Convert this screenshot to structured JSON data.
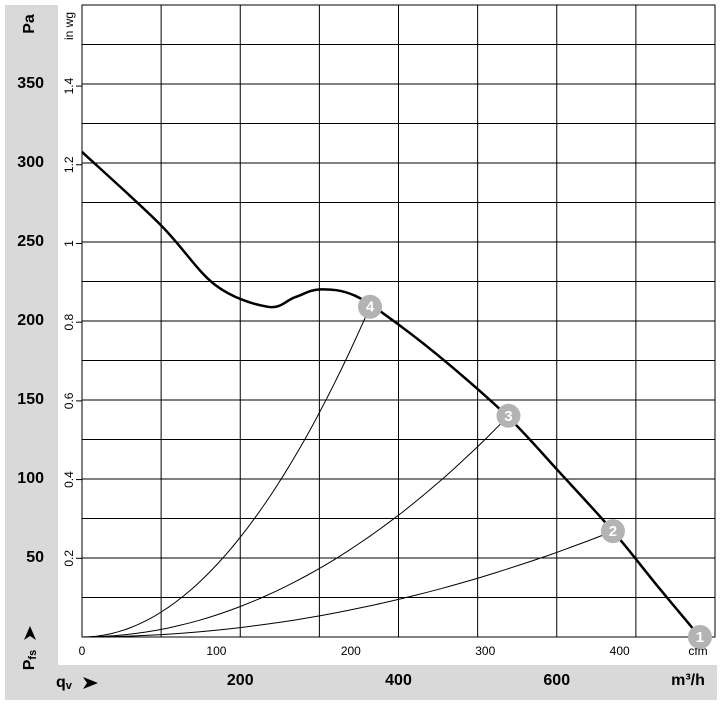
{
  "chart_data": {
    "type": "line",
    "y_label": "Pa",
    "y2_label": "in wg",
    "y_symbol": "P",
    "y_symbol_sub": "fs",
    "x_symbol": "q",
    "x_symbol_sub": "v",
    "x_label": "m³/h",
    "x2_label": "cfm",
    "xlim": [
      0,
      800
    ],
    "xticks": [
      200,
      400,
      600
    ],
    "xgrid": [
      100,
      200,
      300,
      400,
      500,
      600,
      700
    ],
    "x2lim": [
      0,
      470.9
    ],
    "x2ticks": [
      0,
      100,
      200,
      300,
      400
    ],
    "ylim": [
      0,
      400
    ],
    "yticks": [
      50,
      100,
      150,
      200,
      250,
      300,
      350
    ],
    "ygrid": [
      25,
      50,
      75,
      100,
      125,
      150,
      175,
      200,
      225,
      250,
      275,
      300,
      325,
      350,
      375
    ],
    "y2lim": [
      0,
      1.606
    ],
    "y2ticks": [
      0.2,
      0.4,
      0.6,
      0.8,
      1,
      1.2,
      1.4
    ],
    "curve": {
      "color": "#000000",
      "x": [
        0,
        99,
        168,
        235,
        269,
        301,
        345,
        402,
        465,
        539,
        604,
        671,
        731,
        781
      ],
      "values": [
        307,
        261,
        223,
        209,
        215,
        220,
        216,
        197,
        172,
        139,
        104,
        67,
        30,
        0
      ]
    },
    "system_color": "#000000",
    "point_color": "#b3b3b3",
    "operating_points": [
      {
        "label": "1",
        "x": 781,
        "value": 0
      },
      {
        "label": "2",
        "x": 671,
        "value": 67
      },
      {
        "label": "3",
        "x": 539,
        "value": 140
      },
      {
        "label": "4",
        "x": 364,
        "value": 209
      }
    ]
  }
}
